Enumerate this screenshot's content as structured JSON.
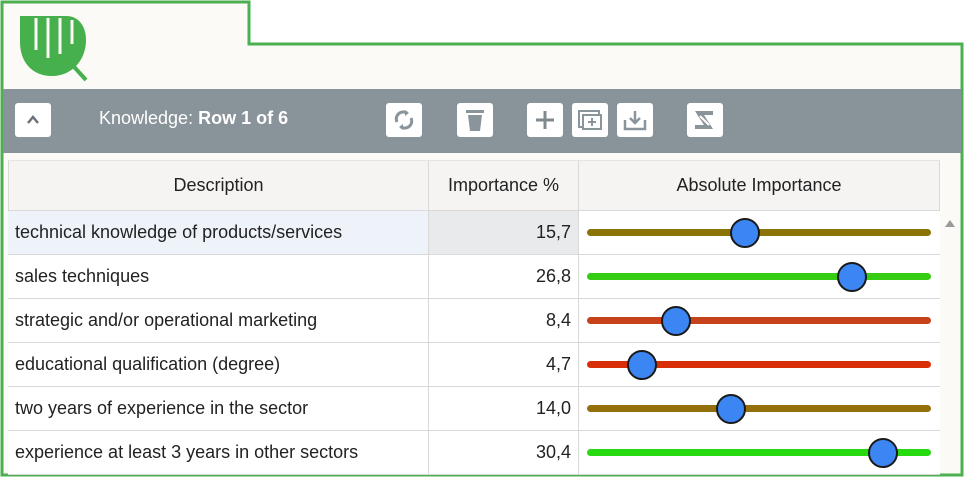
{
  "colors": {
    "frame_green": "#4caf50",
    "logo_green": "#45b04c",
    "toolbar_bg": "#89939a",
    "thumb_blue": "#3b86f2"
  },
  "toolbar": {
    "title_prefix": "Knowledge: ",
    "title_row": "Row 1 of 6",
    "collapse_icon": "chevron-up-icon",
    "buttons": [
      "refresh-icon",
      "trash-icon",
      "plus-icon",
      "add-window-icon",
      "download-icon",
      "excel-icon"
    ]
  },
  "table": {
    "headers": {
      "description": "Description",
      "importance": "Importance %",
      "absolute": "Absolute Importance"
    },
    "rows": [
      {
        "description": "technical knowledge of products/services",
        "importance": "15,7",
        "level": 0.46,
        "track_color": "#8b7308"
      },
      {
        "description": "sales techniques",
        "importance": "26,8",
        "level": 0.77,
        "track_color": "#35cc12"
      },
      {
        "description": "strategic and/or operational marketing",
        "importance": "8,4",
        "level": 0.26,
        "track_color": "#c5421a"
      },
      {
        "description": "educational qualification (degree)",
        "importance": "4,7",
        "level": 0.16,
        "track_color": "#d92f06"
      },
      {
        "description": "two years of experience in the sector",
        "importance": "14,0",
        "level": 0.42,
        "track_color": "#93700c"
      },
      {
        "description": "experience at least 3 years in other sectors",
        "importance": "30,4",
        "level": 0.86,
        "track_color": "#27d90f"
      }
    ]
  }
}
